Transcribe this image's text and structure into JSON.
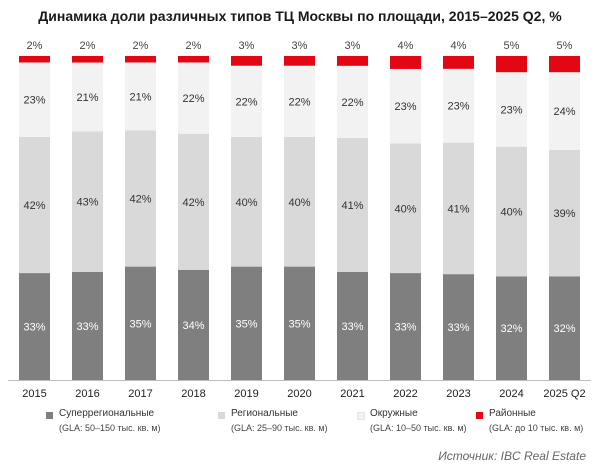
{
  "chart_data": {
    "type": "bar",
    "stacked": true,
    "title": "Динамика доли различных типов ТЦ Москвы по площади, 2015–2025 Q2, %",
    "categories": [
      "2015",
      "2016",
      "2017",
      "2018",
      "2019",
      "2020",
      "2021",
      "2022",
      "2023",
      "2024",
      "2025 Q2"
    ],
    "value_suffix": "%",
    "series": [
      {
        "name": "Суперрегиональные",
        "note": "(GLA: 50–150 тыс. кв. м)",
        "color": "#7f7f7f",
        "label_color": "#ffffff",
        "values": [
          33,
          33,
          35,
          34,
          35,
          35,
          33,
          33,
          33,
          32,
          32
        ]
      },
      {
        "name": "Региональные",
        "note": "(GLA: 25–90 тыс. кв. м)",
        "color": "#d9d9d9",
        "label_color": "#333333",
        "values": [
          42,
          43,
          42,
          42,
          40,
          40,
          41,
          40,
          41,
          40,
          39
        ]
      },
      {
        "name": "Окружные",
        "note": "(GLA: 10–50 тыс. кв. м)",
        "color": "#f2f2f2",
        "label_color": "#333333",
        "values": [
          23,
          21,
          21,
          22,
          22,
          22,
          22,
          23,
          23,
          23,
          24
        ]
      },
      {
        "name": "Районные",
        "note": "(GLA: до 10 тыс. кв. м)",
        "color": "#e30613",
        "label_color": "#333333",
        "values": [
          2,
          2,
          2,
          2,
          3,
          3,
          3,
          4,
          4,
          5,
          5
        ]
      }
    ],
    "ylim": [
      0,
      100
    ],
    "legend_position": "bottom",
    "grid": false
  },
  "source": "Источник: IBC Real Estate"
}
